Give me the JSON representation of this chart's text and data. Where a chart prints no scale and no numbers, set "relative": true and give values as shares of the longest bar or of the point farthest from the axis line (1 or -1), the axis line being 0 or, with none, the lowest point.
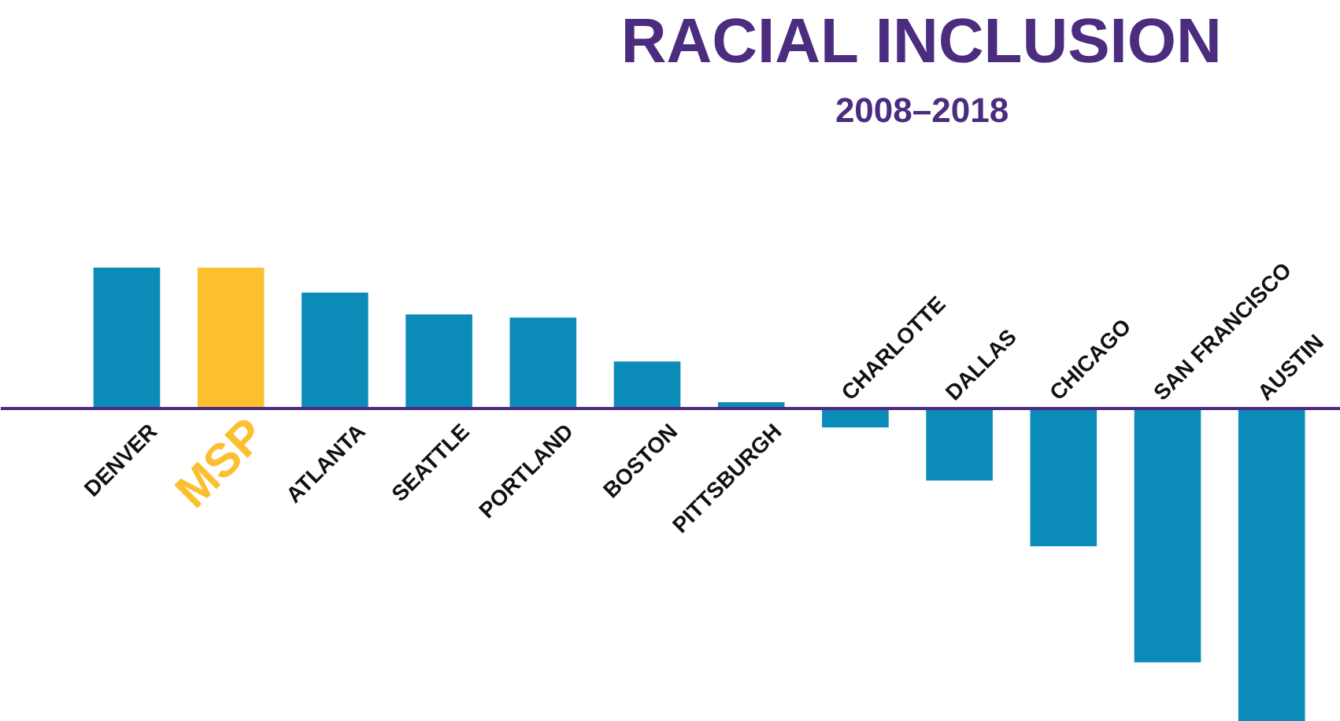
{
  "chart_data": {
    "type": "bar",
    "title": "RACIAL INCLUSION",
    "subtitle": "2008–2018",
    "relative": true,
    "categories": [
      "DENVER",
      "MSP",
      "ATLANTA",
      "SEATTLE",
      "PORTLAND",
      "BOSTON",
      "PITTSBURGH",
      "CHARLOTTE",
      "DALLAS",
      "CHICAGO",
      "SAN FRANCISCO",
      "AUSTIN"
    ],
    "values": [
      0.45,
      0.45,
      0.37,
      0.3,
      0.29,
      0.15,
      0.02,
      -0.06,
      -0.23,
      -0.44,
      -0.81,
      -1
    ],
    "colors": [
      "#0b8bb8",
      "#fbbf2f",
      "#0b8bb8",
      "#0b8bb8",
      "#0b8bb8",
      "#0b8bb8",
      "#0b8bb8",
      "#0b8bb8",
      "#0b8bb8",
      "#0b8bb8",
      "#0b8bb8",
      "#0b8bb8"
    ]
  }
}
